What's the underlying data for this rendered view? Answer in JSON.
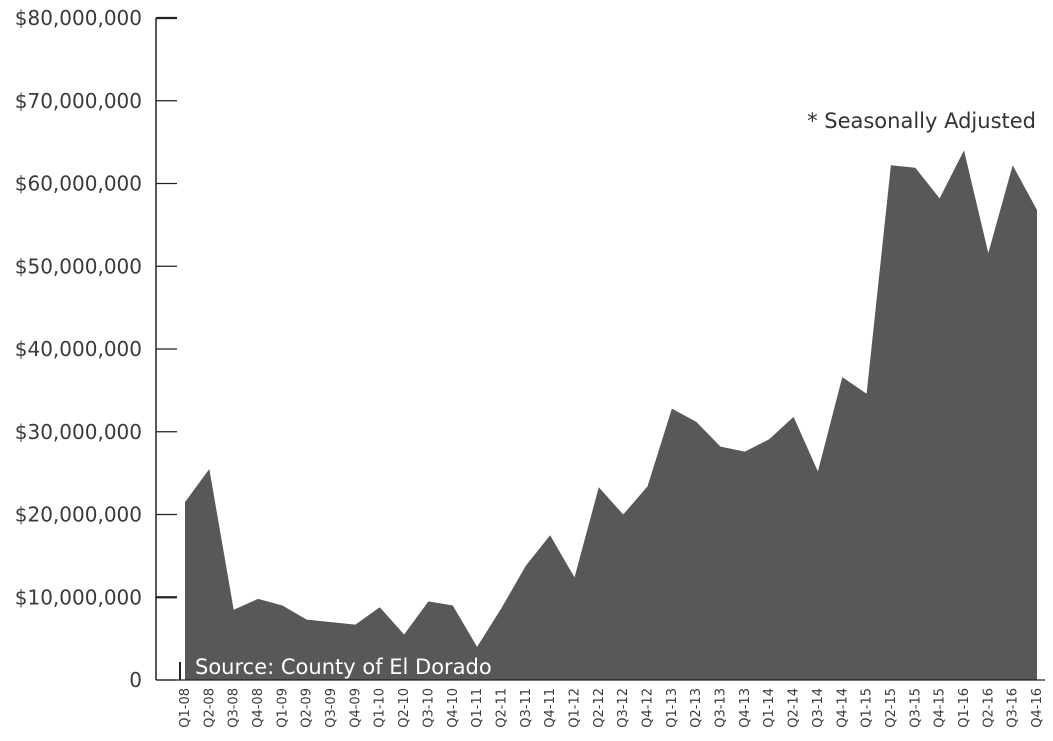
{
  "chart_data": {
    "type": "area",
    "title": "",
    "xlabel": "",
    "ylabel": "",
    "ylim": [
      0,
      80000000
    ],
    "y_ticks": [
      "0",
      "$10,000,000",
      "$20,000,000",
      "$30,000,000",
      "$40,000,000",
      "$50,000,000",
      "$60,000,000",
      "$70,000,000",
      "$80,000,000"
    ],
    "categories": [
      "Q1-08",
      "Q2-08",
      "Q3-08",
      "Q4-08",
      "Q1-09",
      "Q2-09",
      "Q3-09",
      "Q4-09",
      "Q1-10",
      "Q2-10",
      "Q3-10",
      "Q4-10",
      "Q1-11",
      "Q2-11",
      "Q3-11",
      "Q4-11",
      "Q1-12",
      "Q2-12",
      "Q3-12",
      "Q4-12",
      "Q1-13",
      "Q2-13",
      "Q3-13",
      "Q4-13",
      "Q1-14",
      "Q2-14",
      "Q3-14",
      "Q4-14",
      "Q1-15",
      "Q2-15",
      "Q3-15",
      "Q4-15",
      "Q1-16",
      "Q2-16",
      "Q3-16",
      "Q4-16"
    ],
    "values": [
      21500000,
      25500000,
      8500000,
      9800000,
      9000000,
      7300000,
      7000000,
      6700000,
      8800000,
      5500000,
      9500000,
      9000000,
      4000000,
      8700000,
      13800000,
      17500000,
      12400000,
      23300000,
      20000000,
      23400000,
      32800000,
      31200000,
      28200000,
      27600000,
      29100000,
      31800000,
      25200000,
      36600000,
      34600000,
      62200000,
      61900000,
      58200000,
      64000000,
      51600000,
      62200000,
      56800000
    ],
    "grid": false,
    "colors": {
      "fill": "#58585a",
      "axis": "#222222"
    },
    "annotations": {
      "note": "* Seasonally Adjusted",
      "source": "Source: County of El Dorado"
    }
  }
}
